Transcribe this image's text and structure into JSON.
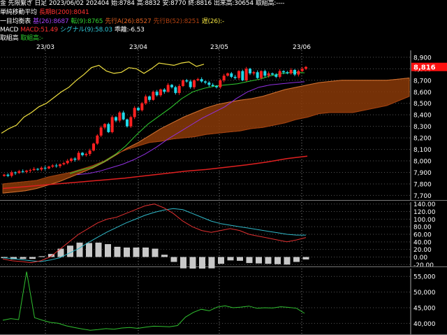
{
  "header": {
    "line1": {
      "symbol": "金 先限繋ぎ 日足",
      "date": "2023/06/02",
      "volume": "202404",
      "open": "始:8784",
      "high": "高:8832",
      "low": "安:8770",
      "close": "終:8816",
      "volume_label": "出来高:30654",
      "turnover": "取組高:----"
    },
    "line2": {
      "name": "単純移動平均",
      "value": "長期B(200):8041"
    },
    "line3": {
      "name": "一目均衡表",
      "base": "基(26):8687",
      "conv": "転(9):8765",
      "spanA": "先行A(26):8527",
      "spanB": "先行B(52):8251",
      "lag": "遅(26):-"
    },
    "line4": {
      "name": "MACD",
      "macd": "MACD:51.49",
      "signal": "シグナル(9):58.03",
      "hist": "乖離:-6.53"
    },
    "line5": {
      "name": "取組高",
      "value": "取組高:-"
    }
  },
  "current_price_label": "8,816",
  "colors": {
    "background": "#000000",
    "up_candle": "#ff2020",
    "down_candle": "#20d8e8",
    "ma200": "#e02020",
    "tenkan": "#30d030",
    "kijun": "#9030e0",
    "chikou": "#f0e040",
    "kumo_fill": "#8a3a08",
    "macd": "#e03030",
    "signal": "#30b8c8",
    "histogram": "#c8c8c8",
    "open_interest": "#30c030",
    "price_tag": "#ff1010"
  },
  "chart_data": [
    {
      "type": "candlestick",
      "title": "金 先限繋ぎ 日足",
      "x_tick_labels": [
        "23/03",
        "23/04",
        "23/05",
        "23/06"
      ],
      "y_tick_labels": [
        "8,900",
        "8,800",
        "8,700",
        "8,600",
        "8,500",
        "8,400",
        "8,300",
        "8,200",
        "8,100",
        "8,000",
        "7,900",
        "7,800",
        "7,700"
      ],
      "ylim": [
        7660,
        8960
      ],
      "grid": true,
      "current_price": 8816,
      "closes": [
        7880,
        7870,
        7900,
        7895,
        7910,
        7905,
        7915,
        7920,
        7930,
        7925,
        7940,
        7935,
        7950,
        7960,
        7955,
        7970,
        7980,
        8000,
        8020,
        8010,
        8070,
        8050,
        8060,
        8090,
        8150,
        8220,
        8290,
        8320,
        8250,
        8380,
        8350,
        8420,
        8360,
        8300,
        8380,
        8460,
        8440,
        8500,
        8560,
        8530,
        8600,
        8570,
        8620,
        8600,
        8660,
        8640,
        8590,
        8650,
        8700,
        8690,
        8640,
        8700,
        8710,
        8690,
        8680,
        8660,
        8650,
        8640,
        8700,
        8740,
        8760,
        8730,
        8720,
        8780,
        8700,
        8800,
        8760,
        8770,
        8720,
        8780,
        8740,
        8760,
        8750,
        8730,
        8780,
        8770,
        8760,
        8790,
        8750,
        8780,
        8800,
        8816
      ],
      "series": [
        {
          "name": "長期B(200)",
          "values": [
            7760,
            7775,
            7790,
            7805,
            7820,
            7835,
            7850,
            7870,
            7890,
            7910,
            7925,
            7945,
            7965,
            7990,
            8020,
            8041
          ]
        },
        {
          "name": "転(9)",
          "values": [
            7890,
            7920,
            7945,
            7990,
            8050,
            8130,
            8230,
            8320,
            8390,
            8460,
            8540,
            8600,
            8630,
            8650,
            8660,
            8670,
            8690,
            8710,
            8740,
            8760,
            8770,
            8765
          ]
        },
        {
          "name": "基(26)",
          "values": [
            7880,
            7890,
            7910,
            7940,
            7970,
            8010,
            8060,
            8120,
            8190,
            8250,
            8310,
            8370,
            8420,
            8470,
            8540,
            8600,
            8640,
            8660,
            8670,
            8680,
            8687
          ]
        },
        {
          "name": "遅(26)",
          "values": [
            8240,
            8280,
            8310,
            8380,
            8420,
            8470,
            8500,
            8550,
            8600,
            8640,
            8700,
            8750,
            8810,
            8830,
            8780,
            8760,
            8770,
            8810,
            8800,
            8760,
            8800,
            8850,
            8840,
            8830,
            8850,
            8860,
            8820,
            8840
          ]
        }
      ],
      "cloud": {
        "spanA": [
          7720,
          7730,
          7740,
          7760,
          7790,
          7820,
          7860,
          7900,
          7940,
          7990,
          8050,
          8110,
          8160,
          8220,
          8280,
          8330,
          8380,
          8420,
          8460,
          8490,
          8510,
          8527,
          8540,
          8560,
          8590,
          8620,
          8640,
          8660,
          8680,
          8690,
          8700,
          8700,
          8700,
          8700,
          8700,
          8710,
          8720
        ],
        "spanB": [
          7800,
          7810,
          7820,
          7830,
          7860,
          7880,
          7900,
          7930,
          7960,
          8000,
          8060,
          8100,
          8130,
          8160,
          8170,
          8190,
          8200,
          8210,
          8230,
          8240,
          8251,
          8260,
          8280,
          8290,
          8310,
          8330,
          8360,
          8380,
          8410,
          8420,
          8420,
          8420,
          8440,
          8460,
          8480,
          8520,
          8560
        ]
      }
    },
    {
      "type": "line",
      "title": "MACD",
      "y_tick_labels": [
        "140.00",
        "120.00",
        "100.00",
        "80.00",
        "60.00",
        "40.00",
        "20.00",
        "0.00",
        "-20.00"
      ],
      "ylim": [
        -25,
        145
      ],
      "series": [
        {
          "name": "MACD",
          "values": [
            -5,
            -10,
            -12,
            -15,
            -10,
            0,
            20,
            40,
            60,
            75,
            90,
            100,
            105,
            115,
            125,
            135,
            140,
            130,
            115,
            95,
            80,
            70,
            65,
            70,
            75,
            70,
            60,
            55,
            50,
            45,
            40,
            45,
            51.49
          ]
        },
        {
          "name": "シグナル(9)",
          "values": [
            -2,
            -4,
            -7,
            -10,
            -12,
            -8,
            -2,
            10,
            22,
            38,
            52,
            66,
            78,
            90,
            100,
            110,
            118,
            124,
            128,
            125,
            115,
            105,
            95,
            88,
            84,
            80,
            76,
            72,
            68,
            64,
            60,
            58,
            58.03
          ]
        },
        {
          "name": "乖離",
          "values": [
            -3,
            -6,
            -5,
            -5,
            2,
            8,
            22,
            30,
            38,
            37,
            38,
            34,
            27,
            25,
            25,
            25,
            22,
            6,
            -13,
            -30,
            -35,
            -35,
            -30,
            -18,
            -9,
            -10,
            -16,
            -17,
            -18,
            -19,
            -20,
            -13,
            -6.53
          ]
        }
      ]
    },
    {
      "type": "line",
      "title": "取組高",
      "y_tick_labels": [
        "55,000",
        "50,000",
        "45,000",
        "40,000"
      ],
      "ylim": [
        36500,
        57500
      ],
      "series": [
        {
          "name": "取組高",
          "values": [
            41000,
            41500,
            41200,
            56500,
            41800,
            41000,
            40300,
            40000,
            39200,
            38700,
            38200,
            37800,
            38000,
            38300,
            38100,
            38500,
            38700,
            38400,
            38800,
            39100,
            39000,
            38900,
            39300,
            42000,
            43500,
            44500,
            44000,
            45200,
            45600,
            45000,
            45200,
            45500,
            44800,
            45000,
            44900,
            45300,
            45100,
            44800,
            43200
          ]
        }
      ]
    }
  ]
}
